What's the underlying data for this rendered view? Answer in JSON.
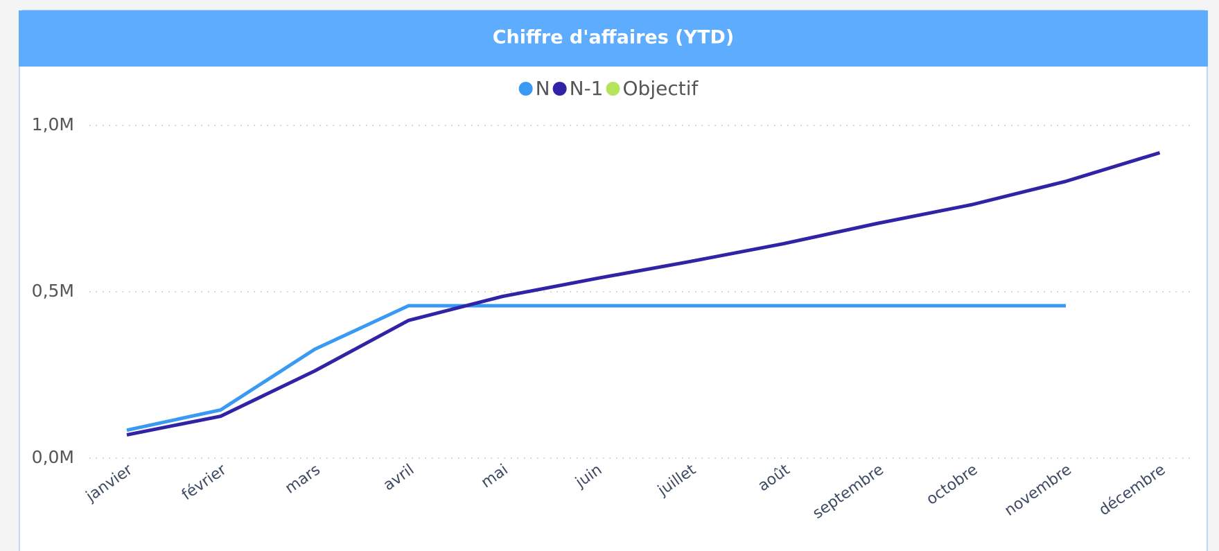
{
  "chart_data": {
    "type": "line",
    "title": "Chiffre d'affaires (YTD)",
    "categories": [
      "janvier",
      "février",
      "mars",
      "avril",
      "mai",
      "juin",
      "juillet",
      "août",
      "septembre",
      "octobre",
      "novembre",
      "décembre"
    ],
    "series": [
      {
        "name": "N",
        "color": "#3a99f2",
        "values": [
          84000,
          145000,
          327000,
          458000,
          458000,
          458000,
          458000,
          458000,
          458000,
          458000,
          458000,
          null
        ]
      },
      {
        "name": "N-1",
        "color": "#3023a6",
        "values": [
          70000,
          126000,
          262000,
          414000,
          486000,
          540000,
          591000,
          645000,
          706000,
          762000,
          832000,
          918000
        ]
      },
      {
        "name": "Objectif",
        "color": "#b6e35c",
        "values": [
          null,
          null,
          null,
          null,
          null,
          null,
          null,
          null,
          null,
          null,
          null,
          null
        ]
      }
    ],
    "ylim": [
      0,
      1000000
    ],
    "yticks": [
      {
        "value": 0,
        "label": "0,0M"
      },
      {
        "value": 500000,
        "label": "0,5M"
      },
      {
        "value": 1000000,
        "label": "1,0M"
      }
    ],
    "grid": true,
    "legend": "top"
  }
}
